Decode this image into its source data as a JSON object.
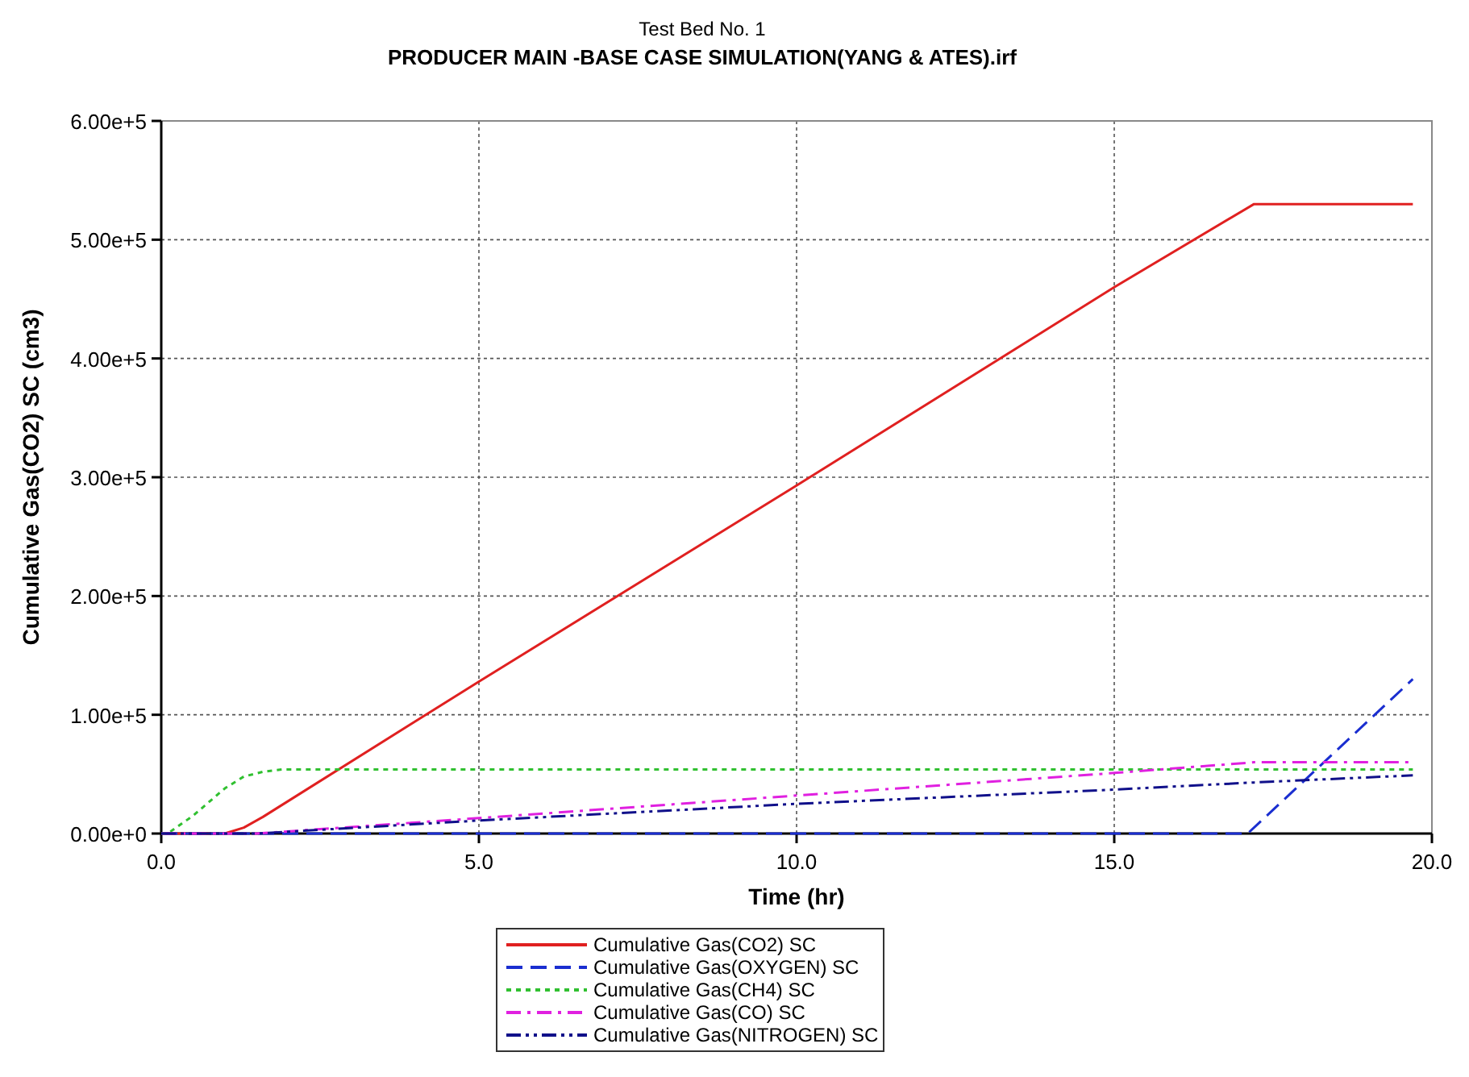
{
  "chart_data": {
    "type": "line",
    "subtitle": "Test Bed No. 1",
    "title": "PRODUCER MAIN -BASE CASE SIMULATION(YANG & ATES).irf",
    "xlabel": "Time (hr)",
    "ylabel": "Cumulative Gas(CO2) SC (cm3)",
    "xlim": [
      0,
      20
    ],
    "xticks": [
      {
        "value": 0,
        "label": "0.0"
      },
      {
        "value": 5,
        "label": "5.0"
      },
      {
        "value": 10,
        "label": "10.0"
      },
      {
        "value": 15,
        "label": "15.0"
      },
      {
        "value": 20,
        "label": "20.0"
      }
    ],
    "ylim": [
      0,
      600000
    ],
    "yticks": [
      {
        "value": 0,
        "label": "0.00e+0"
      },
      {
        "value": 100000,
        "label": "1.00e+5"
      },
      {
        "value": 200000,
        "label": "2.00e+5"
      },
      {
        "value": 300000,
        "label": "3.00e+5"
      },
      {
        "value": 400000,
        "label": "4.00e+5"
      },
      {
        "value": 500000,
        "label": "5.00e+5"
      },
      {
        "value": 600000,
        "label": "6.00e+5"
      }
    ],
    "grid": true,
    "legend": "bottom",
    "series": [
      {
        "name": "Cumulative Gas(CO2) SC",
        "color": "#e02020",
        "line_style": "solid",
        "x": [
          0,
          1.0,
          1.3,
          1.6,
          5,
          10,
          15,
          17.2,
          19.7
        ],
        "values": [
          0,
          0,
          5000,
          14000,
          128000,
          293000,
          460000,
          530000,
          530000
        ]
      },
      {
        "name": "Cumulative Gas(OXYGEN) SC",
        "color": "#1a2ed0",
        "line_style": "dashed",
        "x": [
          0,
          17.1,
          19.7
        ],
        "values": [
          0,
          0,
          130000
        ]
      },
      {
        "name": "Cumulative Gas(CH4) SC",
        "color": "#30c030",
        "line_style": "dotted",
        "x": [
          0,
          0.1,
          0.5,
          1.0,
          1.3,
          1.6,
          1.9,
          19.7
        ],
        "values": [
          0,
          0,
          15000,
          38000,
          48000,
          52000,
          54000,
          54000
        ]
      },
      {
        "name": "Cumulative Gas(CO) SC",
        "color": "#e020e0",
        "line_style": "dashdot",
        "x": [
          0,
          1.5,
          5,
          10,
          15,
          17.2,
          19.7
        ],
        "values": [
          0,
          0,
          13000,
          32000,
          51000,
          60000,
          60000
        ]
      },
      {
        "name": "Cumulative Gas(NITROGEN) SC",
        "color": "#10108a",
        "line_style": "dashdotdot",
        "x": [
          0,
          1.5,
          5,
          10,
          15,
          17.2,
          19.7
        ],
        "values": [
          0,
          0,
          11000,
          25000,
          37000,
          43000,
          49000
        ]
      }
    ]
  }
}
